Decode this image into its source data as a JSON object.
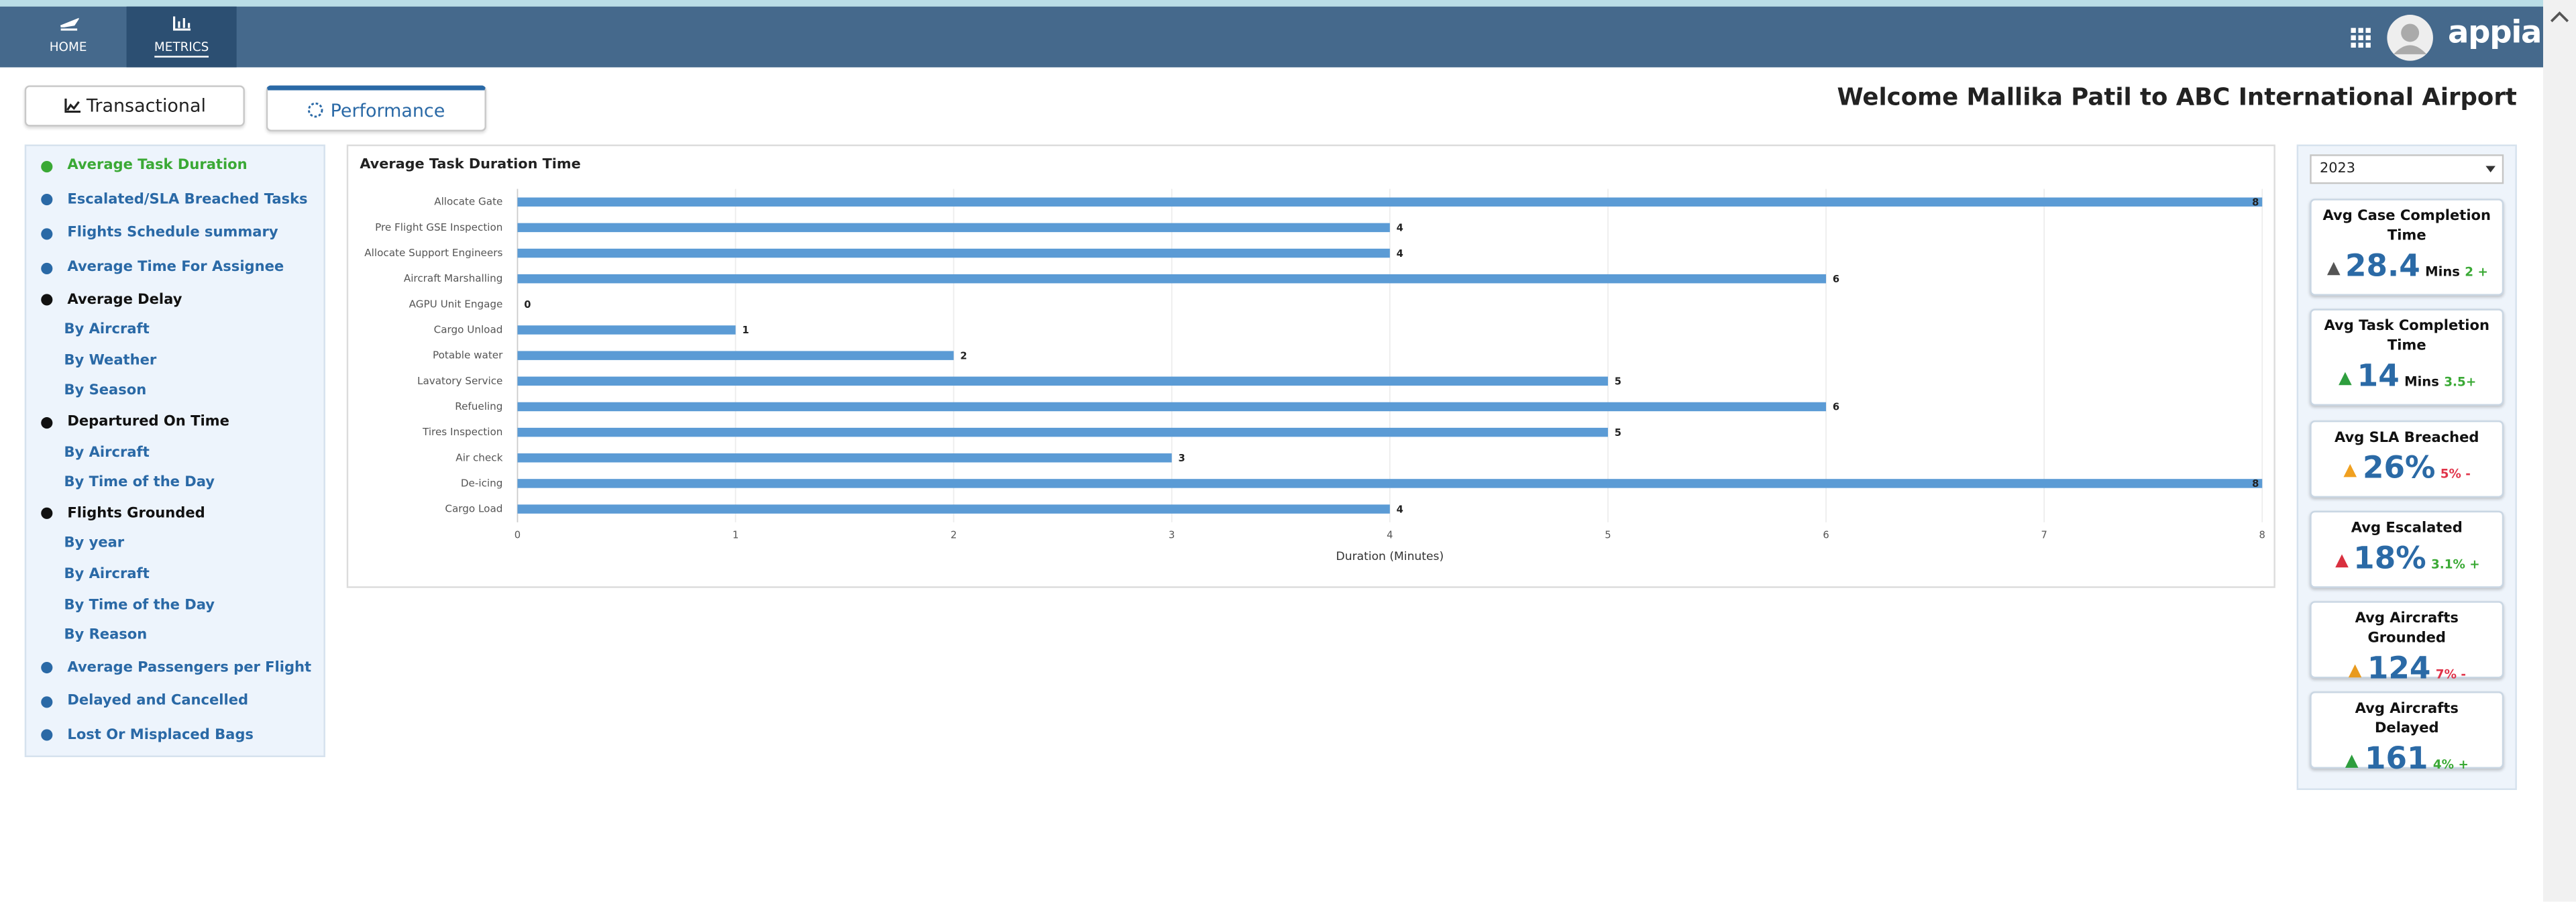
{
  "nav": [
    {
      "label": "HOME"
    },
    {
      "label": "METRICS"
    }
  ],
  "brand": "appian",
  "tabs": [
    "Transactional",
    "Performance"
  ],
  "welcome": "Welcome Mallika Patil to ABC International Airport",
  "sidebar": [
    {
      "label": "Average Task Duration"
    },
    {
      "label": "Escalated/SLA Breached Tasks"
    },
    {
      "label": "Flights Schedule summary"
    },
    {
      "label": "Average Time For Assignee"
    },
    {
      "label": "Average Delay",
      "sub": [
        "By Aircraft",
        "By Weather",
        "By Season"
      ]
    },
    {
      "label": "Departured On Time",
      "sub": [
        "By Aircraft",
        "By Time of the Day"
      ]
    },
    {
      "label": "Flights Grounded",
      "sub": [
        "By year",
        "By Aircraft",
        "By Time of the Day",
        "By Reason"
      ]
    },
    {
      "label": "Average Passengers per Flight"
    },
    {
      "label": "Delayed and Cancelled"
    },
    {
      "label": "Lost Or Misplaced Bags"
    }
  ],
  "year": "2023",
  "kpis": [
    {
      "title": "Avg Case Completion Time",
      "value": "28.4",
      "unit": "Mins",
      "change": "2 +",
      "color": "#3aa935",
      "icon_color": "#555555"
    },
    {
      "title": "Avg Task Completion Time",
      "value": "14",
      "unit": "Mins",
      "change": "3.5+",
      "color": "#3aa935",
      "icon_color": "#2e9e3e"
    },
    {
      "title": "Avg SLA Breached",
      "value": "26%",
      "change": "5% -",
      "color": "#e0344a",
      "icon_color": "#f0a020"
    },
    {
      "title": "Avg Escalated",
      "value": "18%",
      "change": "3.1% +",
      "color": "#3aa935",
      "icon_color": "#d9303f"
    },
    {
      "title": "Avg Aircrafts Grounded",
      "value": "124",
      "change": "7% -",
      "color": "#e0344a",
      "icon_color": "#e89a1e"
    },
    {
      "title": "Avg Aircrafts Delayed",
      "value": "161",
      "change": "4% +",
      "color": "#3aa935",
      "icon_color": "#2e9e3e"
    }
  ],
  "chart_data": {
    "type": "bar",
    "orientation": "horizontal",
    "title": "Average Task Duration Time",
    "x_label": "Duration (Minutes)",
    "categories": [
      "Allocate Gate",
      "Pre Flight GSE Inspection",
      "Allocate Support Engineers",
      "Aircraft Marshalling",
      "AGPU Unit Engage",
      "Cargo Unload",
      "Potable water",
      "Lavatory Service",
      "Refueling",
      "Tires Inspection",
      "Air check",
      "De-icing",
      "Cargo Load"
    ],
    "values": [
      8,
      4,
      4,
      6,
      0,
      1,
      2,
      5,
      6,
      5,
      3,
      8,
      4
    ],
    "color": "#5b9bd5",
    "xlim": [
      0,
      8
    ],
    "xticks": [
      0,
      1,
      2,
      3,
      4,
      5,
      6,
      7,
      8
    ],
    "grid": true
  }
}
